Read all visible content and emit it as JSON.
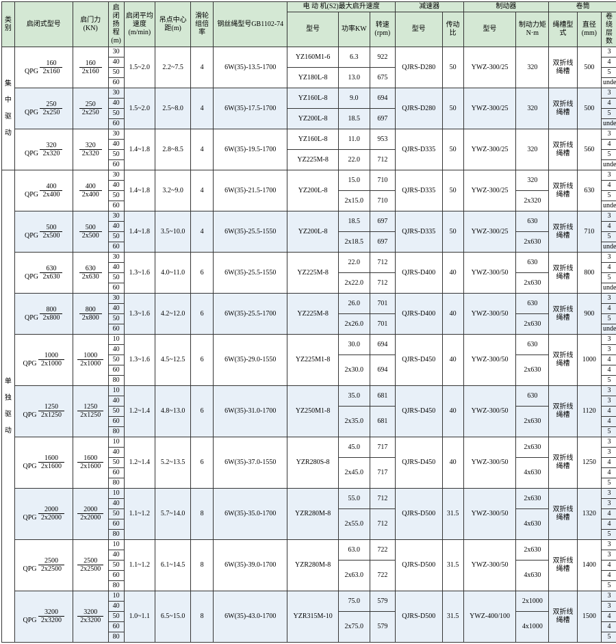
{
  "headers": {
    "cat": "类别",
    "model": "启闭式型号",
    "force": "启门力(KN)",
    "range": "启闭扬程(m)",
    "speed": "启闭平均速度(m/min)",
    "dist": "吊点中心距(m)",
    "ratio": "滑轮组倍率",
    "rope": "钢丝绳型号GB1102-74",
    "motor": "电 动 机(S2)最大启升速度",
    "mm": "型号",
    "mp": "功率KW",
    "mr": "转速(rpm)",
    "red": "减速器",
    "rm": "型号",
    "rt": "传动比",
    "brk": "制动器",
    "bm": "型号",
    "bt": "制动力矩N·m",
    "drum": "卷筒",
    "dm": "绳槽型式",
    "dd": "直径(mm)",
    "dl": "卷绕层数"
  },
  "catA": "集中驱动",
  "catB": "单独驱动",
  "grooveTxt": "双折线绳槽",
  "ranges": [
    "30",
    "40",
    "50",
    "60"
  ],
  "ranges5": [
    "10",
    "40",
    "50",
    "60",
    "80"
  ],
  "layers": [
    "3",
    "4",
    "5"
  ],
  "layers5": [
    "3",
    "3",
    "4",
    "4",
    "5"
  ],
  "rows": [
    {
      "g": "A",
      "qpg": [
        "160",
        "2x160"
      ],
      "f": [
        "160",
        "2x160"
      ],
      "sp": "1.5~2.0",
      "di": "2.2~7.5",
      "ra": "4",
      "ro": "6W(35)-13.5-1700",
      "mm": [
        "YZ160M1-6",
        "YZ180L-8"
      ],
      "mp": [
        "6.3",
        "13.0"
      ],
      "mr": [
        "922",
        "675"
      ],
      "rm": "QJRS-D280",
      "rt": "50",
      "bm": "YWZ-300/25",
      "bt": [
        "320"
      ],
      "dd": "500",
      "ex": false
    },
    {
      "g": "A",
      "qpg": [
        "250",
        "2x250"
      ],
      "f": [
        "250",
        "2x250"
      ],
      "sp": "1.5~2.0",
      "di": "2.5~8.0",
      "ra": "4",
      "ro": "6W(35)-17.5-1700",
      "mm": [
        "YZ160L-8",
        "YZ200L-8"
      ],
      "mp": [
        "9.0",
        "18.5"
      ],
      "mr": [
        "694",
        "697"
      ],
      "rm": "QJRS-D280",
      "rt": "50",
      "bm": "YWZ-300/25",
      "bt": [
        "320"
      ],
      "dd": "500",
      "ex": false,
      "alt": true
    },
    {
      "g": "A",
      "qpg": [
        "320",
        "2x320"
      ],
      "f": [
        "320",
        "2x320"
      ],
      "sp": "1.4~1.8",
      "di": "2.8~8.5",
      "ra": "4",
      "ro": "6W(35)-19.5-1700",
      "mm": [
        "YZ160L-8",
        "YZ225M-8"
      ],
      "mp": [
        "11.0",
        "22.0"
      ],
      "mr": [
        "953",
        "712"
      ],
      "rm": "QJRS-D335",
      "rt": "50",
      "bm": "YWZ-300/25",
      "bt": [
        "320"
      ],
      "dd": "560",
      "ex": false
    },
    {
      "g": "B",
      "qpg": [
        "400",
        "2x400"
      ],
      "f": [
        "400",
        "2x400"
      ],
      "sp": "1.4~1.8",
      "di": "3.2~9.0",
      "ra": "4",
      "ro": "6W(35)-21.5-1700",
      "mm": [
        "YZ200L-8"
      ],
      "mp": [
        "15.0",
        "2x15.0"
      ],
      "mr": [
        "710",
        "710"
      ],
      "rm": "QJRS-D335",
      "rt": "50",
      "bm": "YWZ-300/25",
      "bt": [
        "320",
        "2x320"
      ],
      "dd": "630",
      "ex": false
    },
    {
      "g": "B",
      "qpg": [
        "500",
        "2x500"
      ],
      "f": [
        "500",
        "2x500"
      ],
      "sp": "1.4~1.8",
      "di": "3.5~10.0",
      "ra": "4",
      "ro": "6W(35)-25.5-1550",
      "mm": [
        "YZ200L-8"
      ],
      "mp": [
        "18.5",
        "2x18.5"
      ],
      "mr": [
        "697",
        "697"
      ],
      "rm": "QJRS-D335",
      "rt": "50",
      "bm": "YWZ-300/25",
      "bt": [
        "630",
        "2x630"
      ],
      "dd": "710",
      "ex": false,
      "alt": true
    },
    {
      "g": "B",
      "qpg": [
        "630",
        "2x630"
      ],
      "f": [
        "630",
        "2x630"
      ],
      "sp": "1.3~1.6",
      "di": "4.0~11.0",
      "ra": "6",
      "ro": "6W(35)-25.5-1550",
      "mm": [
        "YZ225M-8"
      ],
      "mp": [
        "22.0",
        "2x22.0"
      ],
      "mr": [
        "712",
        "712"
      ],
      "rm": "QJRS-D400",
      "rt": "40",
      "bm": "YWZ-300/50",
      "bt": [
        "630",
        "2x630"
      ],
      "dd": "800",
      "ex": false
    },
    {
      "g": "B",
      "qpg": [
        "800",
        "2x800"
      ],
      "f": [
        "800",
        "2x800"
      ],
      "sp": "1.3~1.6",
      "di": "4.2~12.0",
      "ra": "6",
      "ro": "6W(35)-25.5-1700",
      "mm": [
        "YZ225M-8"
      ],
      "mp": [
        "26.0",
        "2x26.0"
      ],
      "mr": [
        "701",
        "701"
      ],
      "rm": "QJRS-D400",
      "rt": "40",
      "bm": "YWZ-300/50",
      "bt": [
        "630",
        "2x630"
      ],
      "dd": "900",
      "ex": false,
      "alt": true
    },
    {
      "g": "B",
      "qpg": [
        "1000",
        "2x1000"
      ],
      "f": [
        "1000",
        "2x1000"
      ],
      "sp": "1.3~1.6",
      "di": "4.5~12.5",
      "ra": "6",
      "ro": "6W(35)-29.0-1550",
      "mm": [
        "YZ225M1-8"
      ],
      "mp": [
        "30.0",
        "2x30.0"
      ],
      "mr": [
        "694",
        "694"
      ],
      "rm": "QJRS-D450",
      "rt": "40",
      "bm": "YWZ-300/50",
      "bt": [
        "630",
        "2x630"
      ],
      "dd": "1000",
      "ex": true
    },
    {
      "g": "B",
      "qpg": [
        "1250",
        "2x1250"
      ],
      "f": [
        "1250",
        "2x1250"
      ],
      "sp": "1.2~1.4",
      "di": "4.8~13.0",
      "ra": "6",
      "ro": "6W(35)-31.0-1700",
      "mm": [
        "YZ250M1-8"
      ],
      "mp": [
        "35.0",
        "2x35.0"
      ],
      "mr": [
        "681",
        "681"
      ],
      "rm": "QJRS-D450",
      "rt": "40",
      "bm": "YWZ-300/50",
      "bt": [
        "630",
        "2x630"
      ],
      "dd": "1120",
      "ex": true,
      "alt": true
    },
    {
      "g": "B",
      "qpg": [
        "1600",
        "2x1600"
      ],
      "f": [
        "1600",
        "2x1600"
      ],
      "sp": "1.2~1.4",
      "di": "5.2~13.5",
      "ra": "6",
      "ro": "6W(35)-37.0-1550",
      "mm": [
        "YZR280S-8"
      ],
      "mp": [
        "45.0",
        "2x45.0"
      ],
      "mr": [
        "717",
        "717"
      ],
      "rm": "QJRS-D450",
      "rt": "40",
      "bm": "YWZ-300/50",
      "bt": [
        "2x630",
        "4x630"
      ],
      "dd": "1250",
      "ex": true
    },
    {
      "g": "B",
      "qpg": [
        "2000",
        "2x2000"
      ],
      "f": [
        "2000",
        "2x2000"
      ],
      "sp": "1.1~1.2",
      "di": "5.7~14.0",
      "ra": "8",
      "ro": "6W(35)-35.0-1700",
      "mm": [
        "YZR280M-8"
      ],
      "mp": [
        "55.0",
        "2x55.0"
      ],
      "mr": [
        "712",
        "712"
      ],
      "rm": "QJRS-D500",
      "rt": "31.5",
      "bm": "YWZ-300/50",
      "bt": [
        "2x630",
        "4x630"
      ],
      "dd": "1320",
      "ex": true,
      "alt": true
    },
    {
      "g": "B",
      "qpg": [
        "2500",
        "2x2500"
      ],
      "f": [
        "2500",
        "2x2500"
      ],
      "sp": "1.1~1.2",
      "di": "6.1~14.5",
      "ra": "8",
      "ro": "6W(35)-39.0-1700",
      "mm": [
        "YZR280M-8"
      ],
      "mp": [
        "63.0",
        "2x63.0"
      ],
      "mr": [
        "722",
        "722"
      ],
      "rm": "QJRS-D500",
      "rt": "31.5",
      "bm": "YWZ-300/50",
      "bt": [
        "2x630",
        "4x630"
      ],
      "dd": "1400",
      "ex": true
    },
    {
      "g": "B",
      "qpg": [
        "3200",
        "2x3200"
      ],
      "f": [
        "3200",
        "2x3200"
      ],
      "sp": "1.0~1.1",
      "di": "6.5~15.0",
      "ra": "8",
      "ro": "6W(35)-43.0-1700",
      "mm": [
        "YZR315M-10"
      ],
      "mp": [
        "75.0",
        "2x75.0"
      ],
      "mr": [
        "579",
        "579"
      ],
      "rm": "QJRS-D500",
      "rt": "31.5",
      "bm": "YWZ-400/100",
      "bt": [
        "2x1000",
        "4x1000"
      ],
      "dd": "1500",
      "ex": true,
      "alt": true
    }
  ]
}
